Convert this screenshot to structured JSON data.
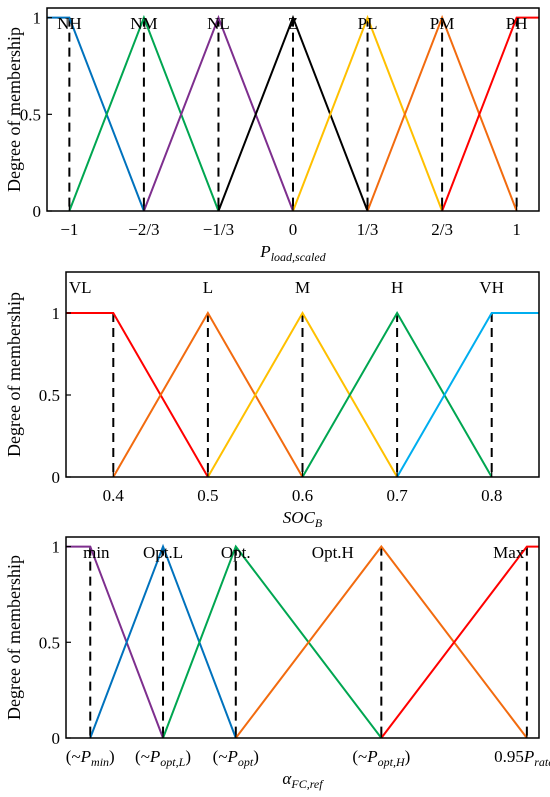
{
  "chart_data": [
    {
      "type": "line",
      "ylabel": "Degree of membership",
      "xlabel_parts": [
        {
          "t": "P",
          "sub": false
        },
        {
          "t": "load,scaled",
          "sub": true
        }
      ],
      "xlim": [
        -1.1,
        1.1
      ],
      "ylim": [
        0,
        1.05
      ],
      "yticks": [
        {
          "v": 1,
          "label": "1"
        },
        {
          "v": 0.5,
          "label": "0.5"
        },
        {
          "v": 0,
          "label": "0"
        }
      ],
      "xticks": [
        {
          "v": -1,
          "label": "−1"
        },
        {
          "v": -0.6667,
          "label": "−2/3"
        },
        {
          "v": -0.3333,
          "label": "−1/3"
        },
        {
          "v": 0,
          "label": "0"
        },
        {
          "v": 0.3333,
          "label": "1/3"
        },
        {
          "v": 0.6667,
          "label": "2/3"
        },
        {
          "v": 1,
          "label": "1"
        }
      ],
      "dashed_at": [
        -1,
        -0.6667,
        -0.3333,
        0,
        0.3333,
        0.6667,
        1
      ],
      "series": [
        {
          "name": "NH",
          "color": "#0072BD",
          "x": [
            -1.1,
            -1,
            -0.6667
          ],
          "y": [
            1,
            1,
            0
          ],
          "label_x": -1
        },
        {
          "name": "NM",
          "color": "#00A651",
          "x": [
            -1,
            -0.6667,
            -0.3333
          ],
          "y": [
            0,
            1,
            0
          ],
          "label_x": -0.6667
        },
        {
          "name": "NL",
          "color": "#7E2F8E",
          "x": [
            -0.6667,
            -0.3333,
            0
          ],
          "y": [
            0,
            1,
            0
          ],
          "label_x": -0.3333
        },
        {
          "name": "Z",
          "color": "#000000",
          "x": [
            -0.3333,
            0,
            0.3333
          ],
          "y": [
            0,
            1,
            0
          ],
          "label_x": 0
        },
        {
          "name": "PL",
          "color": "#FFC000",
          "x": [
            0,
            0.3333,
            0.6667
          ],
          "y": [
            0,
            1,
            0
          ],
          "label_x": 0.3333
        },
        {
          "name": "PM",
          "color": "#F26B0F",
          "x": [
            0.3333,
            0.6667,
            1
          ],
          "y": [
            0,
            1,
            0
          ],
          "label_x": 0.6667
        },
        {
          "name": "PH",
          "color": "#FF0000",
          "x": [
            0.6667,
            1,
            1.1
          ],
          "y": [
            0,
            1,
            1
          ],
          "label_x": 1
        }
      ]
    },
    {
      "type": "line",
      "ylabel": "Degree of membership",
      "xlabel_parts": [
        {
          "t": "SOC",
          "sub": false
        },
        {
          "t": "B",
          "sub": true
        }
      ],
      "xlim": [
        0.35,
        0.85
      ],
      "ylim": [
        0,
        1.25
      ],
      "yticks": [
        {
          "v": 1,
          "label": "1"
        },
        {
          "v": 0.5,
          "label": "0.5"
        },
        {
          "v": 0,
          "label": "0"
        }
      ],
      "xticks": [
        {
          "v": 0.4,
          "label": "0.4"
        },
        {
          "v": 0.5,
          "label": "0.5"
        },
        {
          "v": 0.6,
          "label": "0.6"
        },
        {
          "v": 0.7,
          "label": "0.7"
        },
        {
          "v": 0.8,
          "label": "0.8"
        }
      ],
      "dashed_at": [
        0.4,
        0.5,
        0.6,
        0.7,
        0.8
      ],
      "series": [
        {
          "name": "VL",
          "color": "#FF0000",
          "x": [
            0.35,
            0.4,
            0.5
          ],
          "y": [
            1,
            1,
            0
          ],
          "label_x": 0.365
        },
        {
          "name": "L",
          "color": "#F26B0F",
          "x": [
            0.4,
            0.5,
            0.6
          ],
          "y": [
            0,
            1,
            0
          ],
          "label_x": 0.5
        },
        {
          "name": "M",
          "color": "#FFC000",
          "x": [
            0.5,
            0.6,
            0.7
          ],
          "y": [
            0,
            1,
            0
          ],
          "label_x": 0.6
        },
        {
          "name": "H",
          "color": "#00A651",
          "x": [
            0.6,
            0.7,
            0.8
          ],
          "y": [
            0,
            1,
            0
          ],
          "label_x": 0.7
        },
        {
          "name": "VH",
          "color": "#00AEEF",
          "x": [
            0.7,
            0.8,
            0.85
          ],
          "y": [
            0,
            1,
            1
          ],
          "label_x": 0.8
        }
      ]
    },
    {
      "type": "line",
      "ylabel": "Degree of membership",
      "xlabel_parts": [
        {
          "t": "α",
          "sub": false
        },
        {
          "t": "FC,ref",
          "sub": true
        }
      ],
      "xlim": [
        -0.2,
        3.7
      ],
      "ylim": [
        0,
        1.05
      ],
      "yticks": [
        {
          "v": 1,
          "label": "1"
        },
        {
          "v": 0.5,
          "label": "0.5"
        },
        {
          "v": 0,
          "label": "0"
        }
      ],
      "xticks": [
        {
          "v": 0,
          "parts": [
            {
              "t": "(~",
              "i": false,
              "sub": false
            },
            {
              "t": "P",
              "i": true,
              "sub": false
            },
            {
              "t": "min",
              "i": true,
              "sub": true
            },
            {
              "t": ")",
              "i": false,
              "sub": false
            }
          ]
        },
        {
          "v": 0.6,
          "parts": [
            {
              "t": "(~",
              "i": false,
              "sub": false
            },
            {
              "t": "P",
              "i": true,
              "sub": false
            },
            {
              "t": "opt,L",
              "i": true,
              "sub": true
            },
            {
              "t": ")",
              "i": false,
              "sub": false
            }
          ]
        },
        {
          "v": 1.2,
          "parts": [
            {
              "t": "(~",
              "i": false,
              "sub": false
            },
            {
              "t": "P",
              "i": true,
              "sub": false
            },
            {
              "t": "opt",
              "i": true,
              "sub": true
            },
            {
              "t": ")",
              "i": false,
              "sub": false
            }
          ]
        },
        {
          "v": 2.4,
          "parts": [
            {
              "t": "(~",
              "i": false,
              "sub": false
            },
            {
              "t": "P",
              "i": true,
              "sub": false
            },
            {
              "t": "opt,H",
              "i": true,
              "sub": true
            },
            {
              "t": ")",
              "i": false,
              "sub": false
            }
          ]
        },
        {
          "v": 3.6,
          "parts": [
            {
              "t": "0.95",
              "i": false,
              "sub": false
            },
            {
              "t": "P",
              "i": true,
              "sub": false
            },
            {
              "t": "rated",
              "i": true,
              "sub": true
            }
          ]
        }
      ],
      "dashed_at": [
        0,
        0.6,
        1.2,
        2.4,
        3.6
      ],
      "series": [
        {
          "name": "min",
          "color": "#7E2F8E",
          "x": [
            -0.2,
            0,
            0.6
          ],
          "y": [
            1,
            1,
            0
          ],
          "label_x": 0.05
        },
        {
          "name": "Opt.L",
          "color": "#0072BD",
          "x": [
            0,
            0.6,
            1.2
          ],
          "y": [
            0,
            1,
            0
          ],
          "label_x": 0.6
        },
        {
          "name": "Opt.",
          "color": "#00A651",
          "x": [
            0.6,
            1.2,
            2.4
          ],
          "y": [
            0,
            1,
            0
          ],
          "label_x": 1.2
        },
        {
          "name": "Opt.H",
          "color": "#F26B0F",
          "x": [
            1.2,
            2.4,
            3.6
          ],
          "y": [
            0,
            1,
            0
          ],
          "label_x": 2.0
        },
        {
          "name": "Max",
          "color": "#FF0000",
          "x": [
            2.4,
            3.6,
            3.7
          ],
          "y": [
            0,
            1,
            1
          ],
          "label_x": 3.45
        }
      ]
    }
  ]
}
